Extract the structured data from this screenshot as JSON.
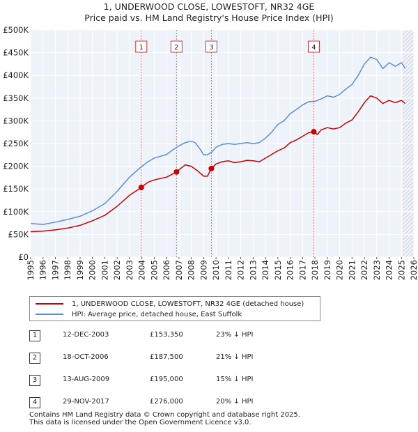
{
  "title_line1": "1, UNDERWOOD CLOSE, LOWESTOFT, NR32 4GE",
  "title_line2": "Price paid vs. HM Land Registry's House Price Index (HPI)",
  "chart_data": {
    "type": "line",
    "title": "1, UNDERWOOD CLOSE, LOWESTOFT, NR32 4GE — Price paid vs. HM Land Registry's House Price Index (HPI)",
    "xlabel": "",
    "ylabel": "",
    "xlim": [
      1995,
      2026
    ],
    "ylim": [
      0,
      500000
    ],
    "x_ticks": [
      "1995",
      "1996",
      "1997",
      "1998",
      "1999",
      "2000",
      "2001",
      "2002",
      "2003",
      "2004",
      "2005",
      "2006",
      "2007",
      "2008",
      "2009",
      "2010",
      "2011",
      "2012",
      "2013",
      "2014",
      "2015",
      "2016",
      "2017",
      "2018",
      "2019",
      "2020",
      "2021",
      "2022",
      "2023",
      "2024",
      "2025",
      "2026"
    ],
    "y_ticks": [
      {
        "value": 0,
        "label": "£0"
      },
      {
        "value": 50000,
        "label": "£50K"
      },
      {
        "value": 100000,
        "label": "£100K"
      },
      {
        "value": 150000,
        "label": "£150K"
      },
      {
        "value": 200000,
        "label": "£200K"
      },
      {
        "value": 250000,
        "label": "£250K"
      },
      {
        "value": 300000,
        "label": "£300K"
      },
      {
        "value": 350000,
        "label": "£350K"
      },
      {
        "value": 400000,
        "label": "£400K"
      },
      {
        "value": 450000,
        "label": "£450K"
      },
      {
        "value": 500000,
        "label": "£500K"
      }
    ],
    "grid": true,
    "forecast_from": 2025.1,
    "series": [
      {
        "name": "1, UNDERWOOD CLOSE, LOWESTOFT, NR32 4GE (detached house)",
        "color": "#cc0000",
        "points": [
          [
            1995.0,
            56000
          ],
          [
            1996.0,
            57000
          ],
          [
            1997.0,
            60000
          ],
          [
            1998.0,
            64000
          ],
          [
            1999.0,
            70000
          ],
          [
            2000.0,
            80000
          ],
          [
            2001.0,
            92000
          ],
          [
            2002.0,
            112000
          ],
          [
            2003.0,
            136000
          ],
          [
            2003.95,
            153350
          ],
          [
            2004.5,
            165000
          ],
          [
            2005.0,
            170000
          ],
          [
            2005.5,
            173000
          ],
          [
            2006.0,
            176000
          ],
          [
            2006.8,
            187500
          ],
          [
            2007.0,
            192000
          ],
          [
            2007.5,
            203000
          ],
          [
            2008.0,
            200000
          ],
          [
            2008.5,
            190000
          ],
          [
            2009.0,
            178000
          ],
          [
            2009.3,
            178000
          ],
          [
            2009.62,
            195000
          ],
          [
            2010.0,
            205000
          ],
          [
            2010.5,
            210000
          ],
          [
            2011.0,
            212000
          ],
          [
            2011.5,
            208000
          ],
          [
            2012.0,
            210000
          ],
          [
            2012.5,
            213000
          ],
          [
            2013.0,
            212000
          ],
          [
            2013.5,
            210000
          ],
          [
            2014.0,
            218000
          ],
          [
            2014.5,
            226000
          ],
          [
            2015.0,
            234000
          ],
          [
            2015.5,
            240000
          ],
          [
            2016.0,
            252000
          ],
          [
            2016.5,
            258000
          ],
          [
            2017.0,
            266000
          ],
          [
            2017.5,
            274000
          ],
          [
            2017.91,
            276000
          ],
          [
            2018.2,
            270000
          ],
          [
            2018.5,
            280000
          ],
          [
            2019.0,
            285000
          ],
          [
            2019.5,
            282000
          ],
          [
            2020.0,
            285000
          ],
          [
            2020.5,
            295000
          ],
          [
            2021.0,
            302000
          ],
          [
            2021.5,
            320000
          ],
          [
            2022.0,
            340000
          ],
          [
            2022.5,
            355000
          ],
          [
            2023.0,
            350000
          ],
          [
            2023.5,
            338000
          ],
          [
            2024.0,
            345000
          ],
          [
            2024.5,
            340000
          ],
          [
            2025.0,
            345000
          ],
          [
            2025.3,
            338000
          ]
        ]
      },
      {
        "name": "HPI: Average price, detached house, East Suffolk",
        "color": "#5b8ed1",
        "points": [
          [
            1995.0,
            74000
          ],
          [
            1996.0,
            72000
          ],
          [
            1997.0,
            77000
          ],
          [
            1998.0,
            83000
          ],
          [
            1999.0,
            90000
          ],
          [
            2000.0,
            102000
          ],
          [
            2001.0,
            118000
          ],
          [
            2002.0,
            145000
          ],
          [
            2003.0,
            176000
          ],
          [
            2004.0,
            200000
          ],
          [
            2004.5,
            210000
          ],
          [
            2005.0,
            218000
          ],
          [
            2005.5,
            222000
          ],
          [
            2006.0,
            226000
          ],
          [
            2006.5,
            236000
          ],
          [
            2007.0,
            245000
          ],
          [
            2007.5,
            252000
          ],
          [
            2008.0,
            255000
          ],
          [
            2008.3,
            252000
          ],
          [
            2008.7,
            238000
          ],
          [
            2009.0,
            225000
          ],
          [
            2009.3,
            225000
          ],
          [
            2009.7,
            232000
          ],
          [
            2010.0,
            242000
          ],
          [
            2010.5,
            248000
          ],
          [
            2011.0,
            250000
          ],
          [
            2011.5,
            248000
          ],
          [
            2012.0,
            250000
          ],
          [
            2012.5,
            252000
          ],
          [
            2013.0,
            250000
          ],
          [
            2013.5,
            252000
          ],
          [
            2014.0,
            262000
          ],
          [
            2014.5,
            275000
          ],
          [
            2015.0,
            292000
          ],
          [
            2015.5,
            300000
          ],
          [
            2016.0,
            316000
          ],
          [
            2016.5,
            325000
          ],
          [
            2017.0,
            335000
          ],
          [
            2017.5,
            342000
          ],
          [
            2018.0,
            343000
          ],
          [
            2018.5,
            348000
          ],
          [
            2019.0,
            355000
          ],
          [
            2019.5,
            352000
          ],
          [
            2020.0,
            358000
          ],
          [
            2020.5,
            370000
          ],
          [
            2021.0,
            380000
          ],
          [
            2021.5,
            400000
          ],
          [
            2022.0,
            425000
          ],
          [
            2022.5,
            440000
          ],
          [
            2023.0,
            435000
          ],
          [
            2023.5,
            415000
          ],
          [
            2024.0,
            428000
          ],
          [
            2024.5,
            420000
          ],
          [
            2025.0,
            428000
          ],
          [
            2025.3,
            415000
          ]
        ]
      }
    ],
    "sales": [
      {
        "label": "1",
        "x": 2003.95,
        "price": 153350
      },
      {
        "label": "2",
        "x": 2006.8,
        "price": 187500
      },
      {
        "label": "3",
        "x": 2009.62,
        "price": 195000
      },
      {
        "label": "4",
        "x": 2017.91,
        "price": 276000
      }
    ]
  },
  "legend": {
    "property": "1, UNDERWOOD CLOSE, LOWESTOFT, NR32 4GE (detached house)",
    "hpi": "HPI: Average price, detached house, East Suffolk",
    "property_color": "#cc0000",
    "hpi_color": "#5b8ed1"
  },
  "transactions": [
    {
      "num": "1",
      "date": "12-DEC-2003",
      "price": "£153,350",
      "hpi": "23% ↓ HPI"
    },
    {
      "num": "2",
      "date": "18-OCT-2006",
      "price": "£187,500",
      "hpi": "21% ↓ HPI"
    },
    {
      "num": "3",
      "date": "13-AUG-2009",
      "price": "£195,000",
      "hpi": "15% ↓ HPI"
    },
    {
      "num": "4",
      "date": "29-NOV-2017",
      "price": "£276,000",
      "hpi": "20% ↓ HPI"
    }
  ],
  "footer_line1": "Contains HM Land Registry data © Crown copyright and database right 2025.",
  "footer_line2": "This data is licensed under the Open Government Licence v3.0."
}
